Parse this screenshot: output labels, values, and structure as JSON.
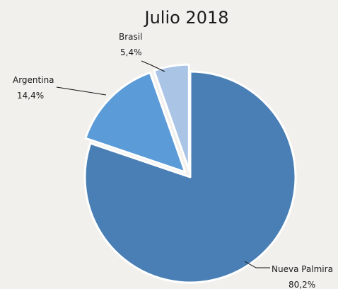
{
  "chart_data": {
    "type": "pie",
    "title": "Julio 2018",
    "slices": [
      {
        "label": "Nueva Palmira",
        "value": 80.2,
        "value_text": "80,2%",
        "color": "#4a7fb6",
        "exploded": false
      },
      {
        "label": "Argentina",
        "value": 14.4,
        "value_text": "14,4%",
        "color": "#5b9bd8",
        "exploded": true
      },
      {
        "label": "Brasil",
        "value": 5.4,
        "value_text": "5,4%",
        "color": "#aac4e6",
        "exploded": true
      }
    ],
    "start": "12 o'clock",
    "direction": "clockwise",
    "slice_border_color": "#ffffff",
    "legend": "none"
  }
}
